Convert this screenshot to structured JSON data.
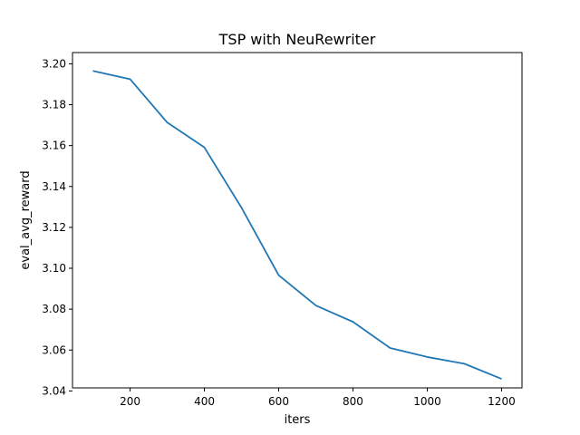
{
  "chart_data": {
    "type": "line",
    "title": "TSP with NeuRewriter",
    "xlabel": "iters",
    "ylabel": "eval_avg_reward",
    "xlim": [
      45,
      1255
    ],
    "ylim": [
      3.0415,
      3.2055
    ],
    "grid": false,
    "x_ticks": [
      200,
      400,
      600,
      800,
      1000,
      1200
    ],
    "x_tick_labels": [
      "200",
      "400",
      "600",
      "800",
      "1000",
      "1200"
    ],
    "y_ticks": [
      3.04,
      3.06,
      3.08,
      3.1,
      3.12,
      3.14,
      3.16,
      3.18,
      3.2
    ],
    "y_tick_labels": [
      "3.04",
      "3.06",
      "3.08",
      "3.10",
      "3.12",
      "3.14",
      "3.16",
      "3.18",
      "3.20"
    ],
    "series": [
      {
        "color": "#1f77b4",
        "x": [
          100,
          200,
          300,
          400,
          500,
          600,
          700,
          800,
          900,
          1000,
          1100,
          1200
        ],
        "values": [
          3.1965,
          3.1925,
          3.1713,
          3.1591,
          3.1296,
          3.0966,
          3.0818,
          3.0738,
          3.061,
          3.0566,
          3.0533,
          3.0459
        ]
      }
    ]
  }
}
